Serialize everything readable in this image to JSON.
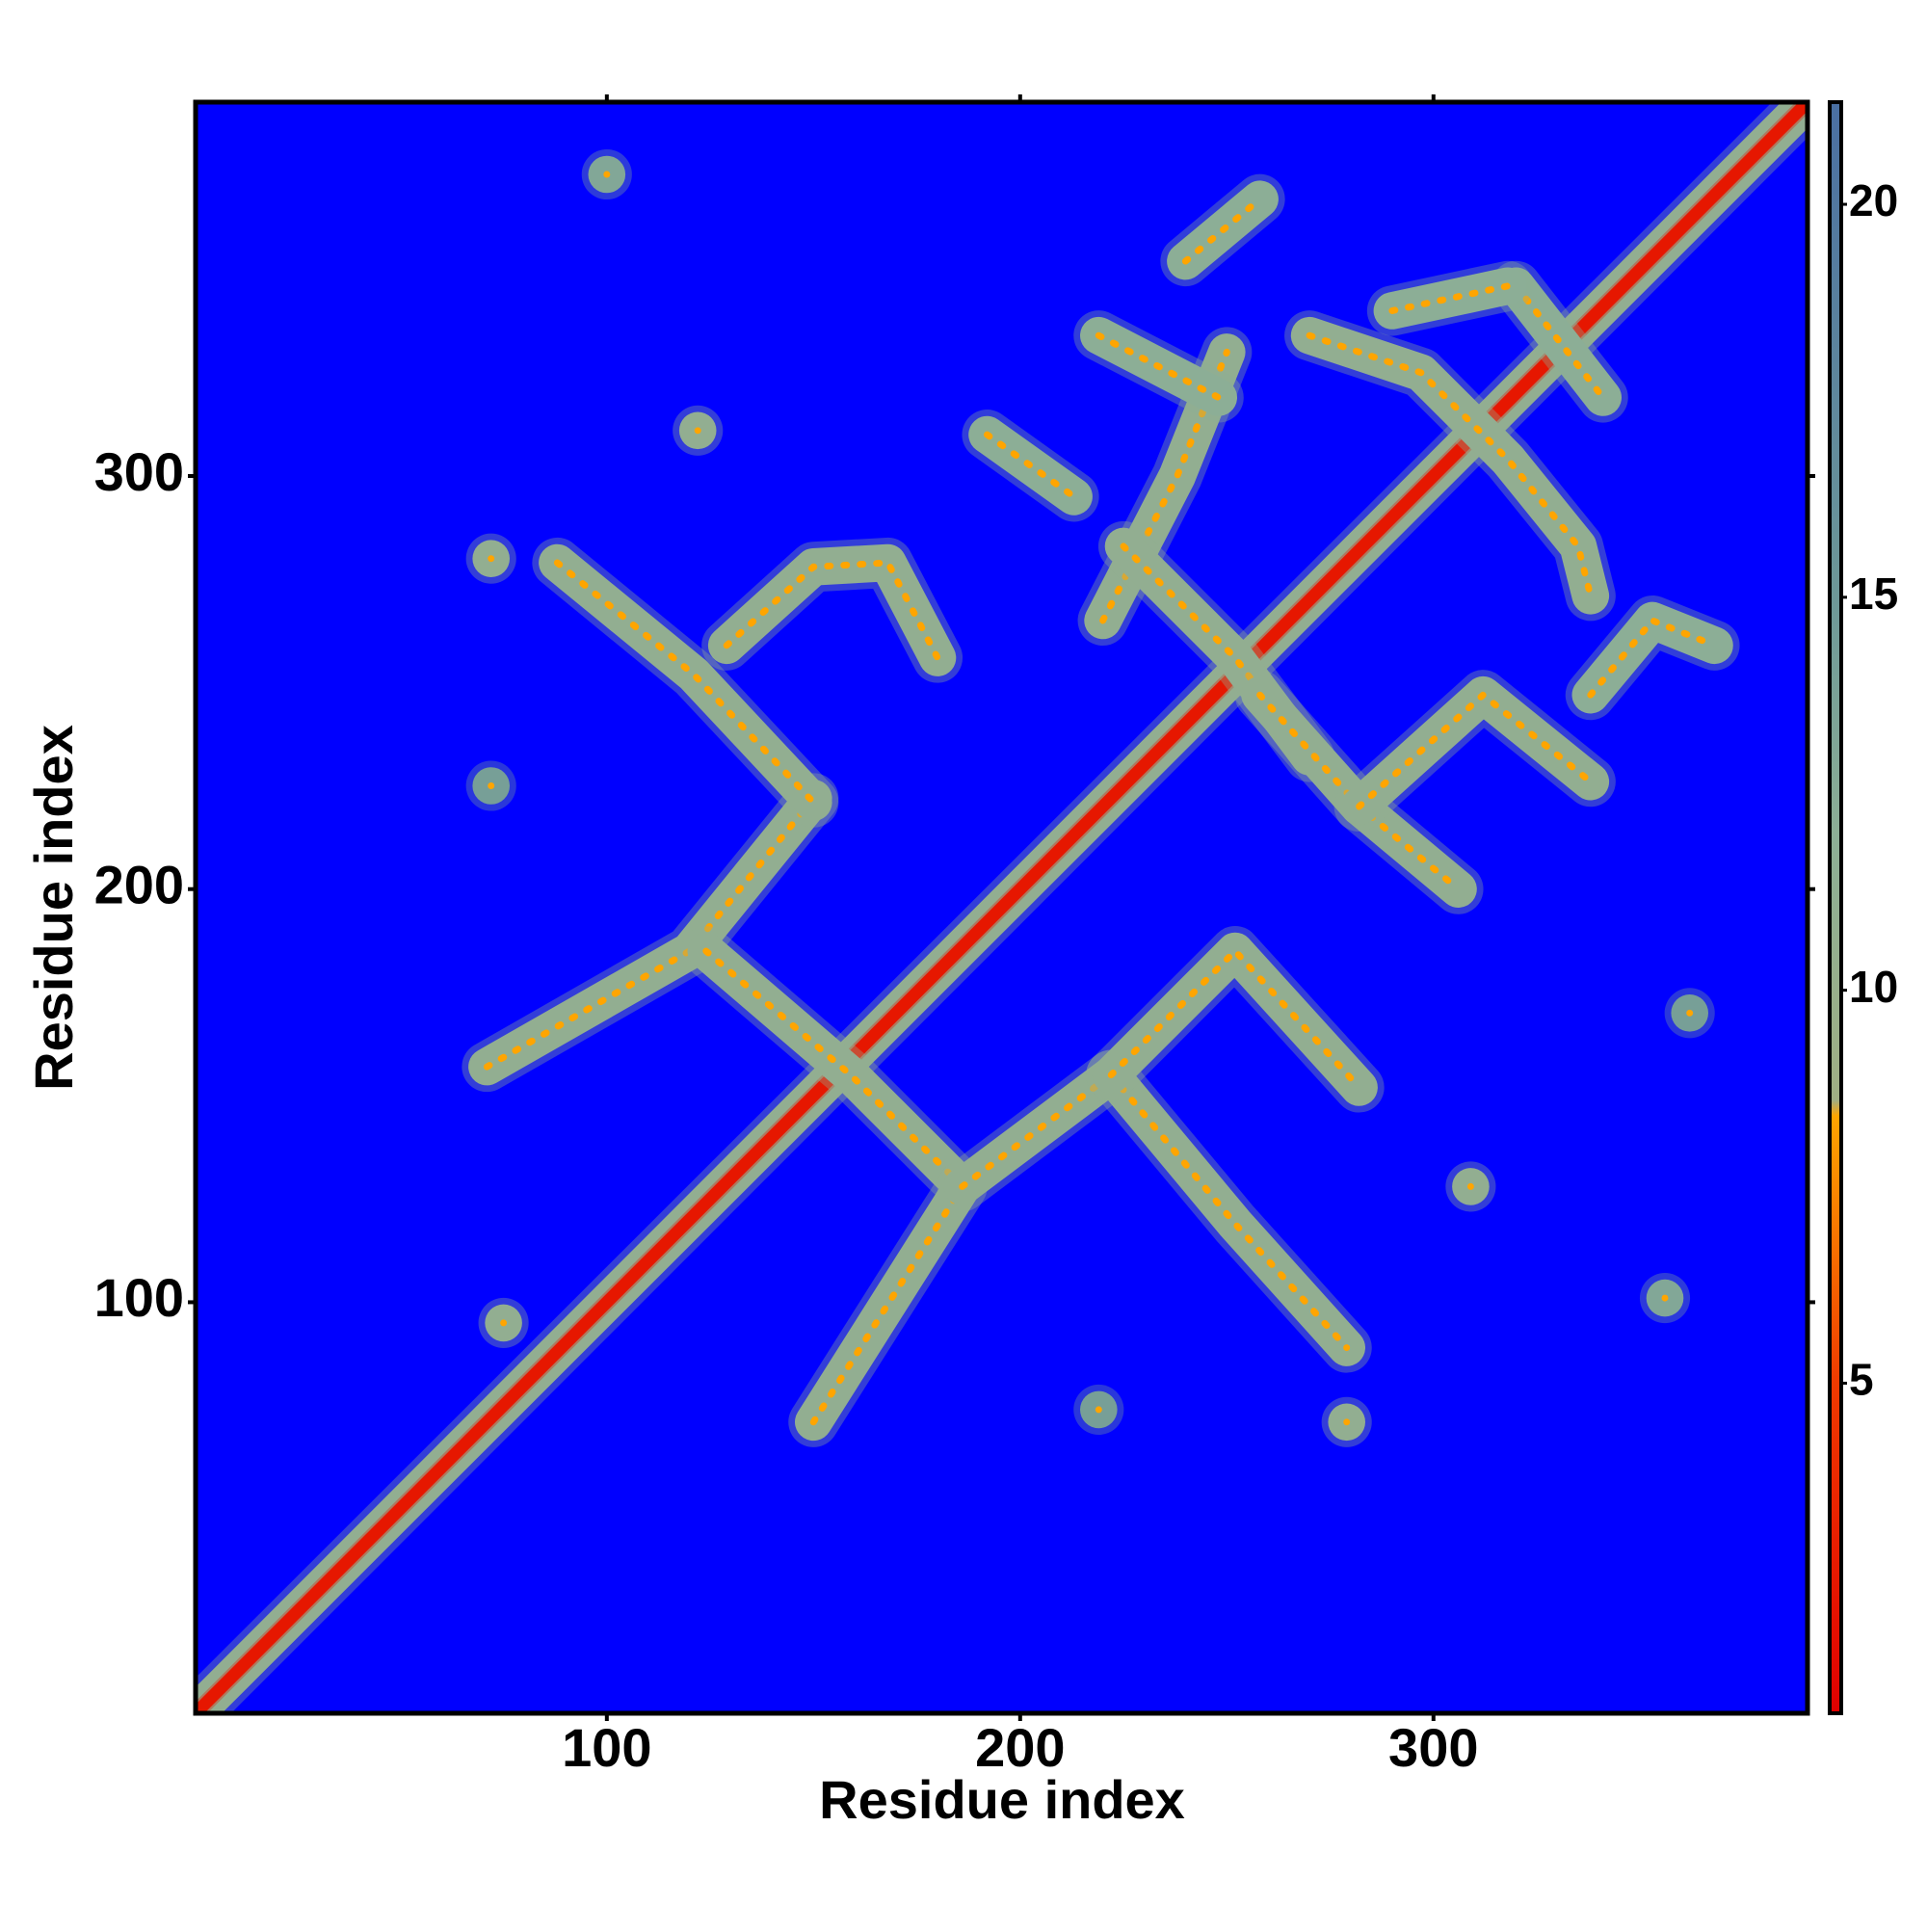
{
  "chart_data": {
    "type": "heatmap",
    "xlabel": "Residue index",
    "ylabel": "Residue index",
    "xlim": [
      0.5,
      390.5
    ],
    "ylim": [
      0.5,
      390.5
    ],
    "xticks": [
      100,
      200,
      300
    ],
    "yticks": [
      100,
      200,
      300
    ],
    "zlim": [
      0.8,
      21.3
    ],
    "zticks": [
      5,
      10,
      15,
      20
    ],
    "background": "#0000ff",
    "colorscale": [
      {
        "value": 0.8,
        "color": "#e00000"
      },
      {
        "value": 5,
        "color": "#f03a00"
      },
      {
        "value": 8.4,
        "color": "#ffa500"
      },
      {
        "value": 8.6,
        "color": "#9fae84"
      },
      {
        "value": 12,
        "color": "#8cae96"
      },
      {
        "value": 15,
        "color": "#6d9898"
      },
      {
        "value": 21.3,
        "color": "#4a6fa2"
      }
    ],
    "bands": [
      {
        "x": [
          1,
          390
        ],
        "y": [
          1,
          390
        ],
        "value": 11
      },
      {
        "x": [
          1,
          390
        ],
        "y": [
          1,
          390
        ],
        "value": 2.5
      },
      {
        "x": [
          71,
          120,
          150
        ],
        "y": [
          157,
          185,
          222
        ],
        "value": 11
      },
      {
        "x": [
          88,
          121,
          150
        ],
        "y": [
          279,
          252,
          221
        ],
        "value": 11
      },
      {
        "x": [
          129,
          150,
          168,
          180
        ],
        "y": [
          259,
          278,
          279,
          256
        ],
        "value": 11
      },
      {
        "x": [
          124,
          159,
          183
        ],
        "y": [
          185,
          155,
          131
        ],
        "value": 11
      },
      {
        "x": [
          150,
          186
        ],
        "y": [
          71,
          128
        ],
        "value": 11
      },
      {
        "x": [
          186,
          222
        ],
        "y": [
          128,
          155
        ],
        "value": 11
      },
      {
        "x": [
          222,
          252,
          279
        ],
        "y": [
          155,
          119,
          89
        ],
        "value": 11
      },
      {
        "x": [
          222,
          252,
          282
        ],
        "y": [
          155,
          185,
          152
        ],
        "value": 11
      },
      {
        "x": [
          192,
          213
        ],
        "y": [
          310,
          295
        ],
        "value": 12
      },
      {
        "x": [
          220,
          238,
          250
        ],
        "y": [
          265,
          300,
          330
        ],
        "value": 11
      },
      {
        "x": [
          219,
          248
        ],
        "y": [
          334,
          319
        ],
        "value": 12
      },
      {
        "x": [
          225,
          252,
          270
        ],
        "y": [
          283,
          256,
          232
        ],
        "value": 11
      },
      {
        "x": [
          258,
          282,
          306
        ],
        "y": [
          247,
          220,
          200
        ],
        "value": 11
      },
      {
        "x": [
          282,
          312,
          338
        ],
        "y": [
          220,
          247,
          226
        ],
        "value": 11
      },
      {
        "x": [
          338,
          353,
          368
        ],
        "y": [
          247,
          265,
          259
        ],
        "value": 12
      },
      {
        "x": [
          270,
          297,
          318,
          335,
          338
        ],
        "y": [
          334,
          325,
          304,
          283,
          271
        ],
        "value": 11
      },
      {
        "x": [
          320,
          341
        ],
        "y": [
          346,
          319
        ],
        "value": 12
      },
      {
        "x": [
          240,
          258
        ],
        "y": [
          352,
          367
        ],
        "value": 12
      },
      {
        "x": [
          290,
          318
        ],
        "y": [
          340,
          346
        ],
        "value": 12
      },
      {
        "x": [
          279
        ],
        "y": [
          71
        ],
        "value": 11
      },
      {
        "x": [
          356
        ],
        "y": [
          101
        ],
        "value": 13
      },
      {
        "x": [
          362
        ],
        "y": [
          170
        ],
        "value": 14
      },
      {
        "x": [
          309
        ],
        "y": [
          128
        ],
        "value": 11
      },
      {
        "x": [
          219
        ],
        "y": [
          74
        ],
        "value": 14
      },
      {
        "x": [
          100
        ],
        "y": [
          373
        ],
        "value": 13
      },
      {
        "x": [
          122
        ],
        "y": [
          311
        ],
        "value": 11
      },
      {
        "x": [
          72
        ],
        "y": [
          280
        ],
        "value": 11
      },
      {
        "x": [
          72
        ],
        "y": [
          225
        ],
        "value": 14
      },
      {
        "x": [
          75
        ],
        "y": [
          95
        ],
        "value": 11
      }
    ]
  }
}
